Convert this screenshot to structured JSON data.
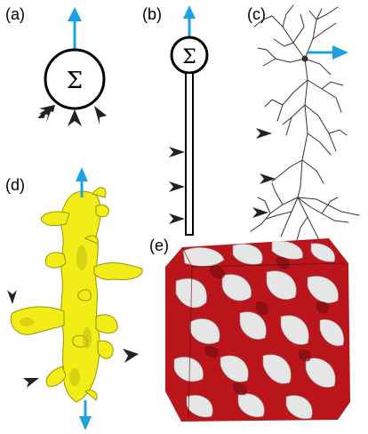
{
  "panels": {
    "a": {
      "label": "(a)",
      "symbol": "Σ"
    },
    "b": {
      "label": "(b)",
      "symbol": "Σ"
    },
    "c": {
      "label": "(c)"
    },
    "d": {
      "label": "(d)"
    },
    "e": {
      "label": "(e)"
    }
  },
  "colors": {
    "arrow": "#1aa3e0",
    "input_arrowhead": "#222222",
    "dendrite_fill": "#f2ec17",
    "dendrite_stroke": "#9a9400",
    "tissue_red": "#c0161c",
    "tissue_white": "#e9e9e9",
    "neuron_line": "#333333"
  },
  "icons": [
    "summation-node",
    "output-arrow",
    "input-arrowhead",
    "neuron-tracing",
    "dendrite-surface",
    "tissue-volume"
  ]
}
